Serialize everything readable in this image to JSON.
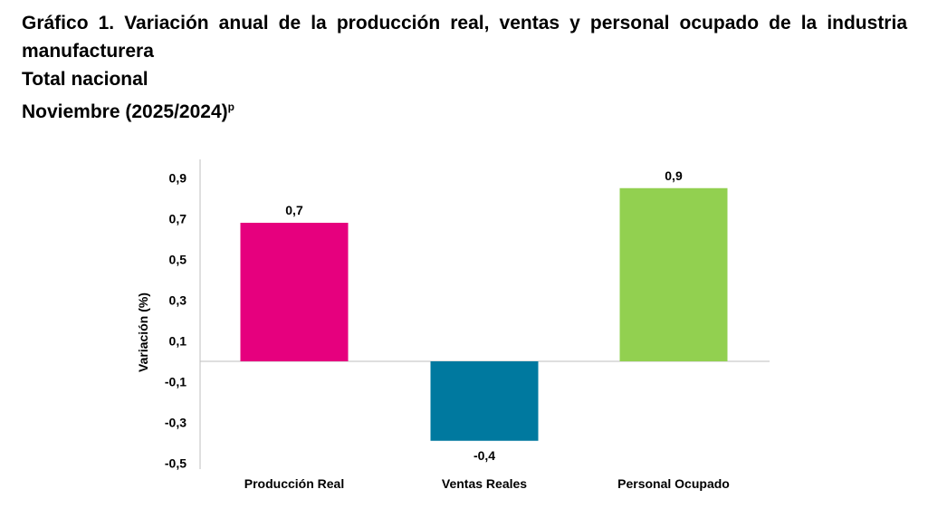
{
  "title": {
    "line1": "Gráfico 1. Variación anual de la producción real, ventas y personal ocupado de la industria",
    "line2": "manufacturera",
    "line3": "Total nacional",
    "line4_main": "Noviembre (2025/2024)",
    "line4_sup": "p"
  },
  "chart_data": {
    "type": "bar",
    "title": "",
    "xlabel": "",
    "ylabel": "Variación (%)",
    "ylim": [
      -0.5,
      0.9
    ],
    "yticks": [
      -0.5,
      -0.3,
      -0.1,
      0.1,
      0.3,
      0.5,
      0.7,
      0.9
    ],
    "yticklabels": [
      "-0,5",
      "-0,3",
      "-0,1",
      "0,1",
      "0,3",
      "0,5",
      "0,7",
      "0,9"
    ],
    "categories": [
      "Producción Real",
      "Ventas Reales",
      "Personal Ocupado"
    ],
    "values": [
      0.68,
      -0.39,
      0.85
    ],
    "data_labels": [
      "0,7",
      "-0,4",
      "0,9"
    ],
    "colors": [
      "#e6007e",
      "#00799f",
      "#92d050"
    ],
    "grid": false,
    "legend": "none"
  }
}
